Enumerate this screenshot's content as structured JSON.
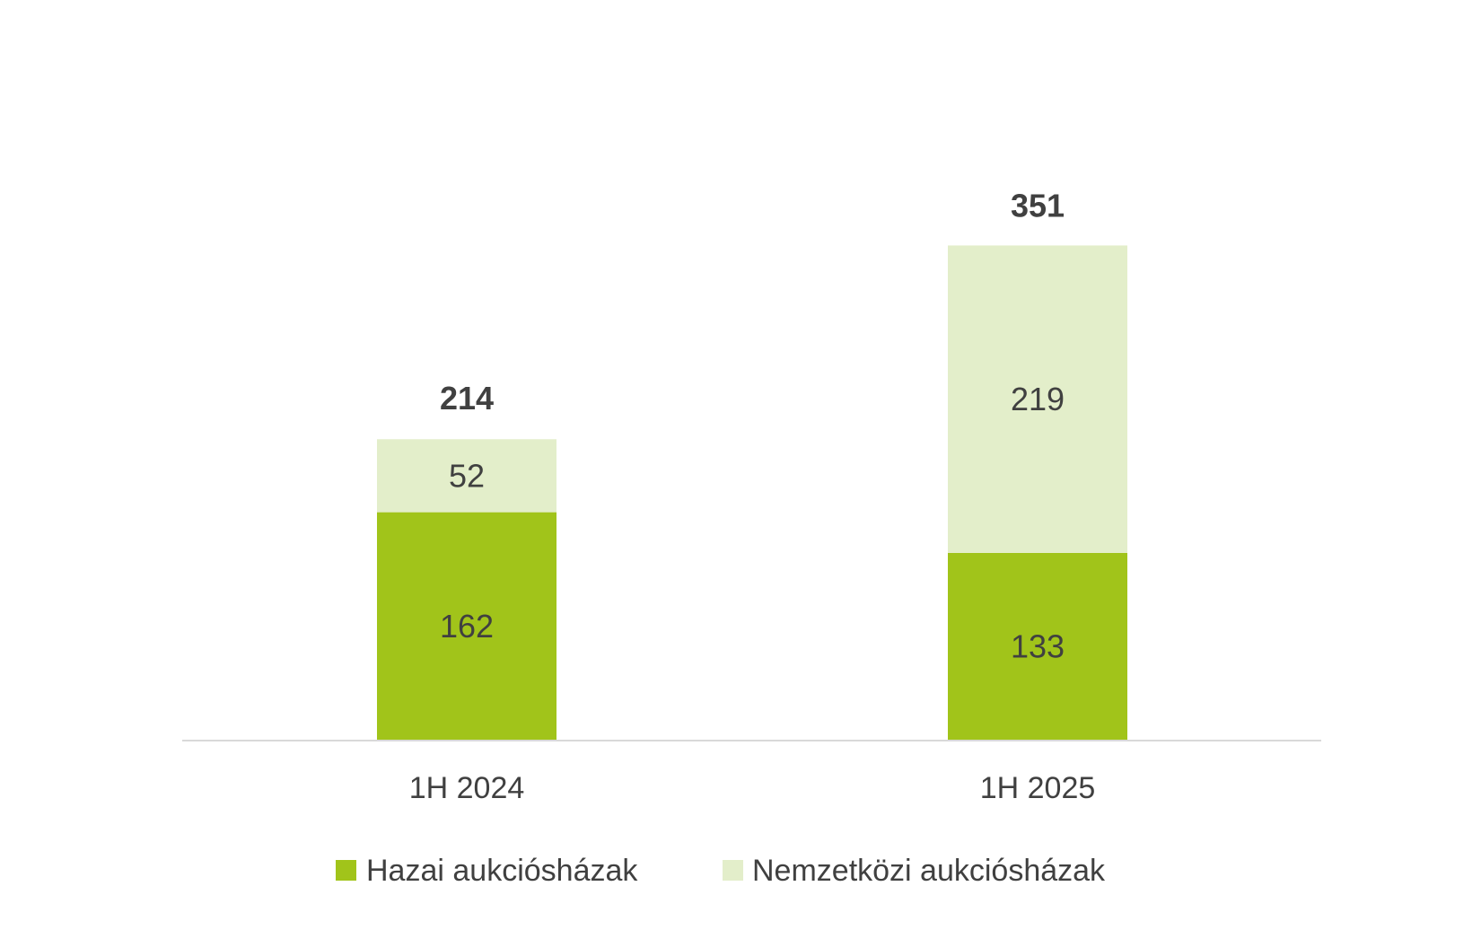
{
  "chart_data": {
    "type": "bar",
    "stacked": true,
    "title": "",
    "xlabel": "",
    "ylabel": "",
    "categories": [
      "1H 2024",
      "1H 2025"
    ],
    "series": [
      {
        "name": "Hazai aukciósházak",
        "values": [
          162,
          133
        ],
        "color": "#a1c41a"
      },
      {
        "name": "Nemzetközi aukciósházak",
        "values": [
          52,
          219
        ],
        "color": "#e3eeca"
      }
    ],
    "totals": [
      214,
      351
    ],
    "ylim": [
      0,
      351
    ],
    "grid": false,
    "legend_position": "bottom",
    "colors": {
      "axis_line": "#d9d9d9",
      "text": "#404040"
    }
  }
}
